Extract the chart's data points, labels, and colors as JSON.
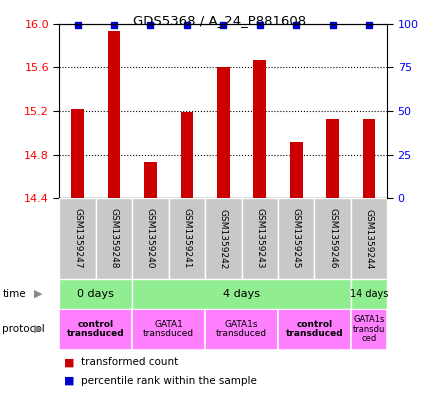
{
  "title": "GDS5368 / A_24_P881608",
  "samples": [
    "GSM1359247",
    "GSM1359248",
    "GSM1359240",
    "GSM1359241",
    "GSM1359242",
    "GSM1359243",
    "GSM1359245",
    "GSM1359246",
    "GSM1359244"
  ],
  "red_values": [
    15.22,
    15.93,
    14.73,
    15.19,
    15.6,
    15.67,
    14.92,
    15.13,
    15.13
  ],
  "ymin": 14.4,
  "ymax": 16.0,
  "yticks_left": [
    14.4,
    14.8,
    15.2,
    15.6,
    16.0
  ],
  "yticks_right": [
    0,
    25,
    50,
    75,
    100
  ],
  "time_groups": [
    {
      "label": "0 days",
      "start": 0,
      "end": 2,
      "color": "#90EE90"
    },
    {
      "label": "4 days",
      "start": 2,
      "end": 8,
      "color": "#90EE90"
    },
    {
      "label": "14 days",
      "start": 8,
      "end": 9,
      "color": "#90EE90"
    }
  ],
  "protocol_groups": [
    {
      "label": "control\ntransduced",
      "start": 0,
      "end": 2,
      "color": "#FF80FF",
      "bold": true
    },
    {
      "label": "GATA1\ntransduced",
      "start": 2,
      "end": 4,
      "color": "#FF80FF",
      "bold": false
    },
    {
      "label": "GATA1s\ntransduced",
      "start": 4,
      "end": 6,
      "color": "#FF80FF",
      "bold": false
    },
    {
      "label": "control\ntransduced",
      "start": 6,
      "end": 8,
      "color": "#FF80FF",
      "bold": true
    },
    {
      "label": "GATA1s\ntransdu\nced",
      "start": 8,
      "end": 9,
      "color": "#FF80FF",
      "bold": false
    }
  ],
  "bar_color": "#CC0000",
  "dot_color": "#0000CC",
  "sample_bg_color": "#C8C8C8",
  "background_color": "#FFFFFF",
  "bar_width": 0.35
}
